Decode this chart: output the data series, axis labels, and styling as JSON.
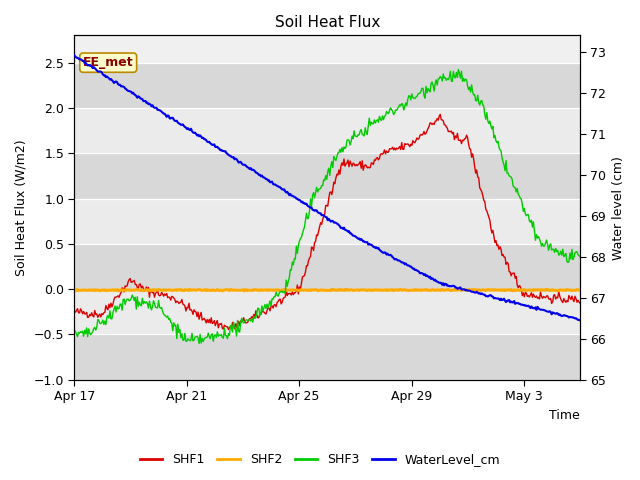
{
  "title": "Soil Heat Flux",
  "ylabel_left": "Soil Heat Flux (W/m2)",
  "ylabel_right": "Water level (cm)",
  "xlabel": "Time",
  "annotation_text": "EE_met",
  "ylim_left": [
    -1.0,
    2.8
  ],
  "ylim_right": [
    65.0,
    73.4
  ],
  "yticks_left": [
    -1.0,
    -0.5,
    0.0,
    0.5,
    1.0,
    1.5,
    2.0,
    2.5
  ],
  "yticks_right": [
    65.0,
    66.0,
    67.0,
    68.0,
    69.0,
    70.0,
    71.0,
    72.0,
    73.0
  ],
  "xtick_labels": [
    "Apr 17",
    "Apr 21",
    "Apr 25",
    "Apr 29",
    "May 3"
  ],
  "xtick_positions": [
    0,
    4,
    8,
    12,
    16
  ],
  "xlim": [
    0,
    18
  ],
  "colors": {
    "SHF1": "#dd0000",
    "SHF2": "#ffaa00",
    "SHF3": "#00cc00",
    "WaterLevel": "#0000ee"
  },
  "band_light": "#ebebeb",
  "band_dark": "#d8d8d8",
  "fig_bg": "#ffffff",
  "plot_bg": "#f0f0f0"
}
